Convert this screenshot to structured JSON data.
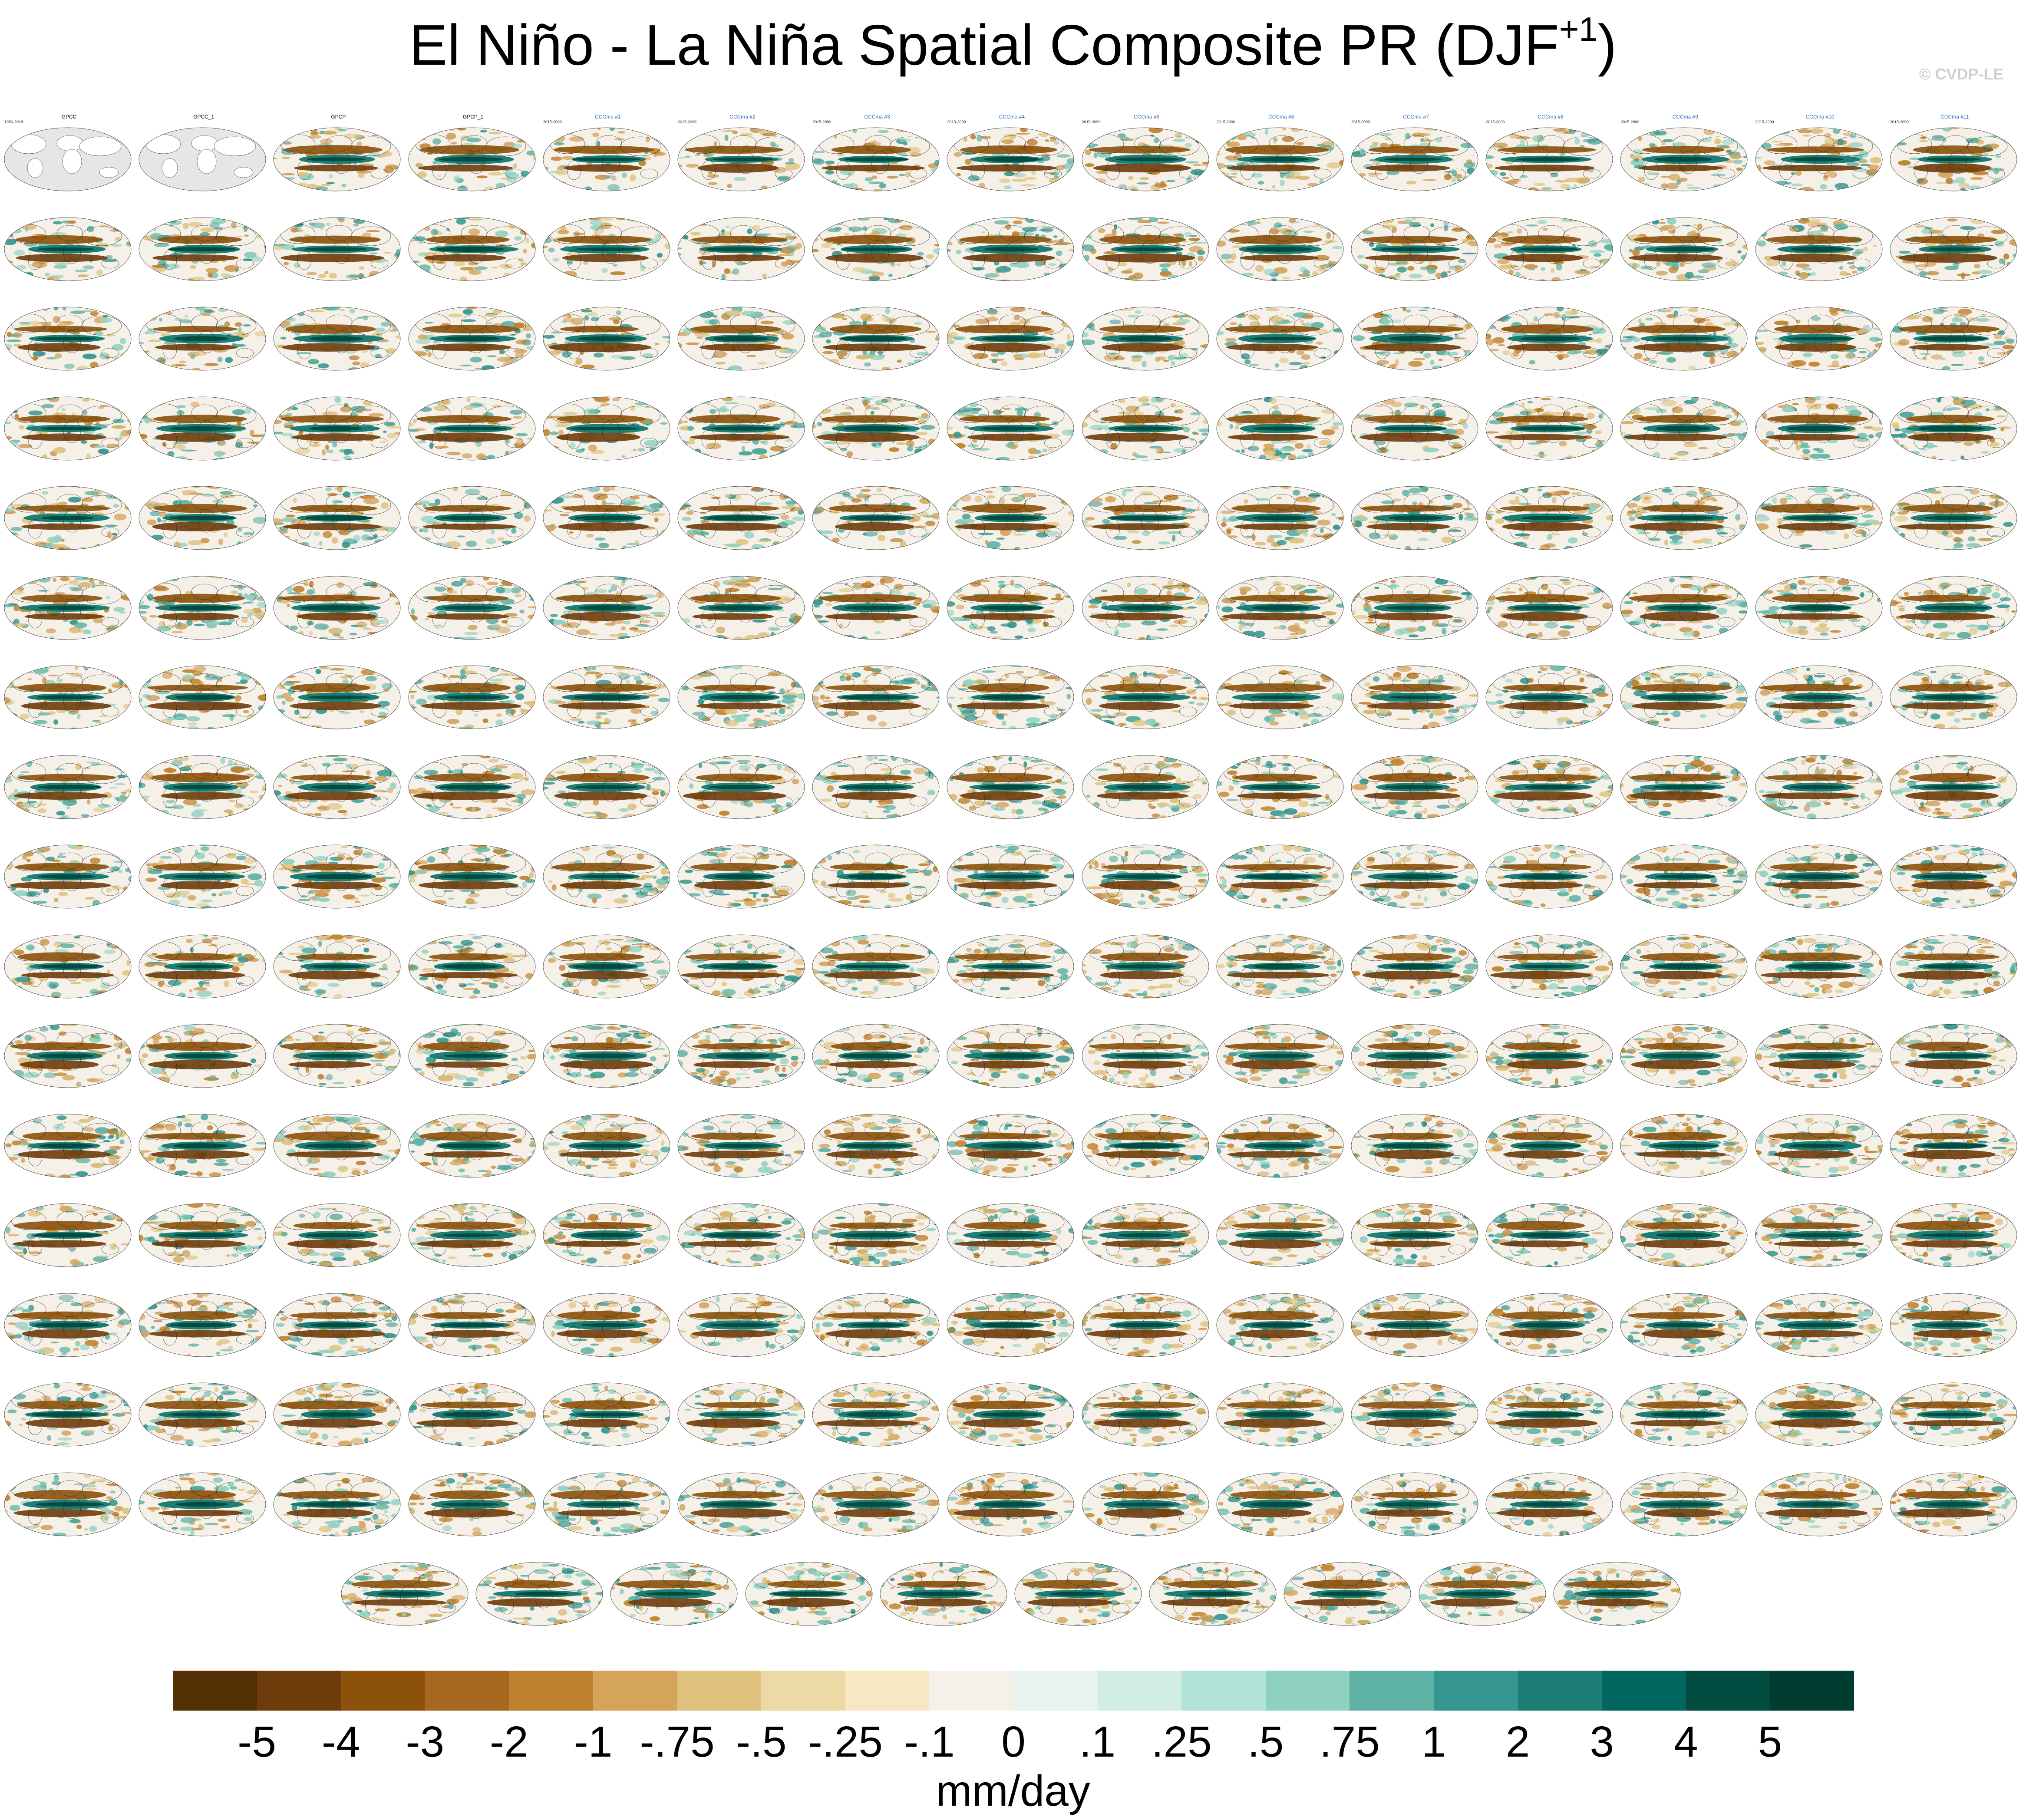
{
  "title": {
    "main": "El Niño - La Niña Spatial Composite PR (DJF",
    "sup": "+1",
    "close": ")"
  },
  "watermark": "© CVDP-LE",
  "chart_data": {
    "type": "heatmap",
    "description_kind": "small-multiples spatial composite maps",
    "title": "El Niño - La Niña Spatial Composite PR (DJF+1)",
    "units": "mm/day",
    "colorbar": {
      "tick_labels": [
        "-5",
        "-4",
        "-3",
        "-2",
        "-1",
        "-.75",
        "-.5",
        "-.25",
        "-.1",
        "0",
        ".1",
        ".25",
        ".5",
        ".75",
        "1",
        "2",
        "3",
        "4",
        "5"
      ],
      "colors": [
        "#543005",
        "#6e3b0b",
        "#8c510a",
        "#a8671f",
        "#bf812d",
        "#d3a45a",
        "#dfc27d",
        "#ecd9a6",
        "#f6e8c3",
        "#f5f0e8",
        "#e8f3f0",
        "#d2ece6",
        "#b2e2d8",
        "#8ed1c0",
        "#5fb3a6",
        "#35978f",
        "#1c7e74",
        "#01665e",
        "#014b40",
        "#003c30"
      ]
    },
    "panels": [
      {
        "label": "GPCC",
        "period": "1950-2018",
        "kind": "obs-mask",
        "label_color": "#000000"
      },
      {
        "label": "GPCC_1",
        "period": "",
        "kind": "obs-mask",
        "label_color": "#000000"
      },
      {
        "label": "GPCP",
        "period": "",
        "kind": "obs",
        "label_color": "#000000"
      },
      {
        "label": "GPCP_1",
        "period": "",
        "kind": "obs",
        "label_color": "#000000"
      },
      {
        "label": "CCCma #1",
        "period": "2015-2099",
        "kind": "model",
        "label_color": "#1f6fc6"
      },
      {
        "label": "CCCma #2",
        "period": "2015-2099",
        "kind": "model",
        "label_color": "#1f6fc6"
      },
      {
        "label": "CCCma #3",
        "period": "2015-2099",
        "kind": "model",
        "label_color": "#1f6fc6"
      },
      {
        "label": "CCCma #4",
        "period": "2015-2099",
        "kind": "model",
        "label_color": "#1f6fc6"
      },
      {
        "label": "CCCma #5",
        "period": "2015-2099",
        "kind": "model",
        "label_color": "#1f6fc6"
      },
      {
        "label": "CCCma #6",
        "period": "2015-2099",
        "kind": "model",
        "label_color": "#1f6fc6"
      },
      {
        "label": "CCCma #7",
        "period": "2015-2099",
        "kind": "model",
        "label_color": "#1f6fc6"
      },
      {
        "label": "CCCma #8",
        "period": "2015-2099",
        "kind": "model",
        "label_color": "#1f6fc6"
      },
      {
        "label": "CCCma #9",
        "period": "2015-2099",
        "kind": "model",
        "label_color": "#1f6fc6"
      },
      {
        "label": "CCCma #10",
        "period": "2015-2099",
        "kind": "model",
        "label_color": "#1f6fc6"
      },
      {
        "label": "CCCma #11",
        "period": "2015-2099",
        "kind": "model",
        "label_color": "#1f6fc6"
      }
    ],
    "grid": {
      "rows": 17,
      "cols": 15,
      "last_row_count": 10
    }
  }
}
